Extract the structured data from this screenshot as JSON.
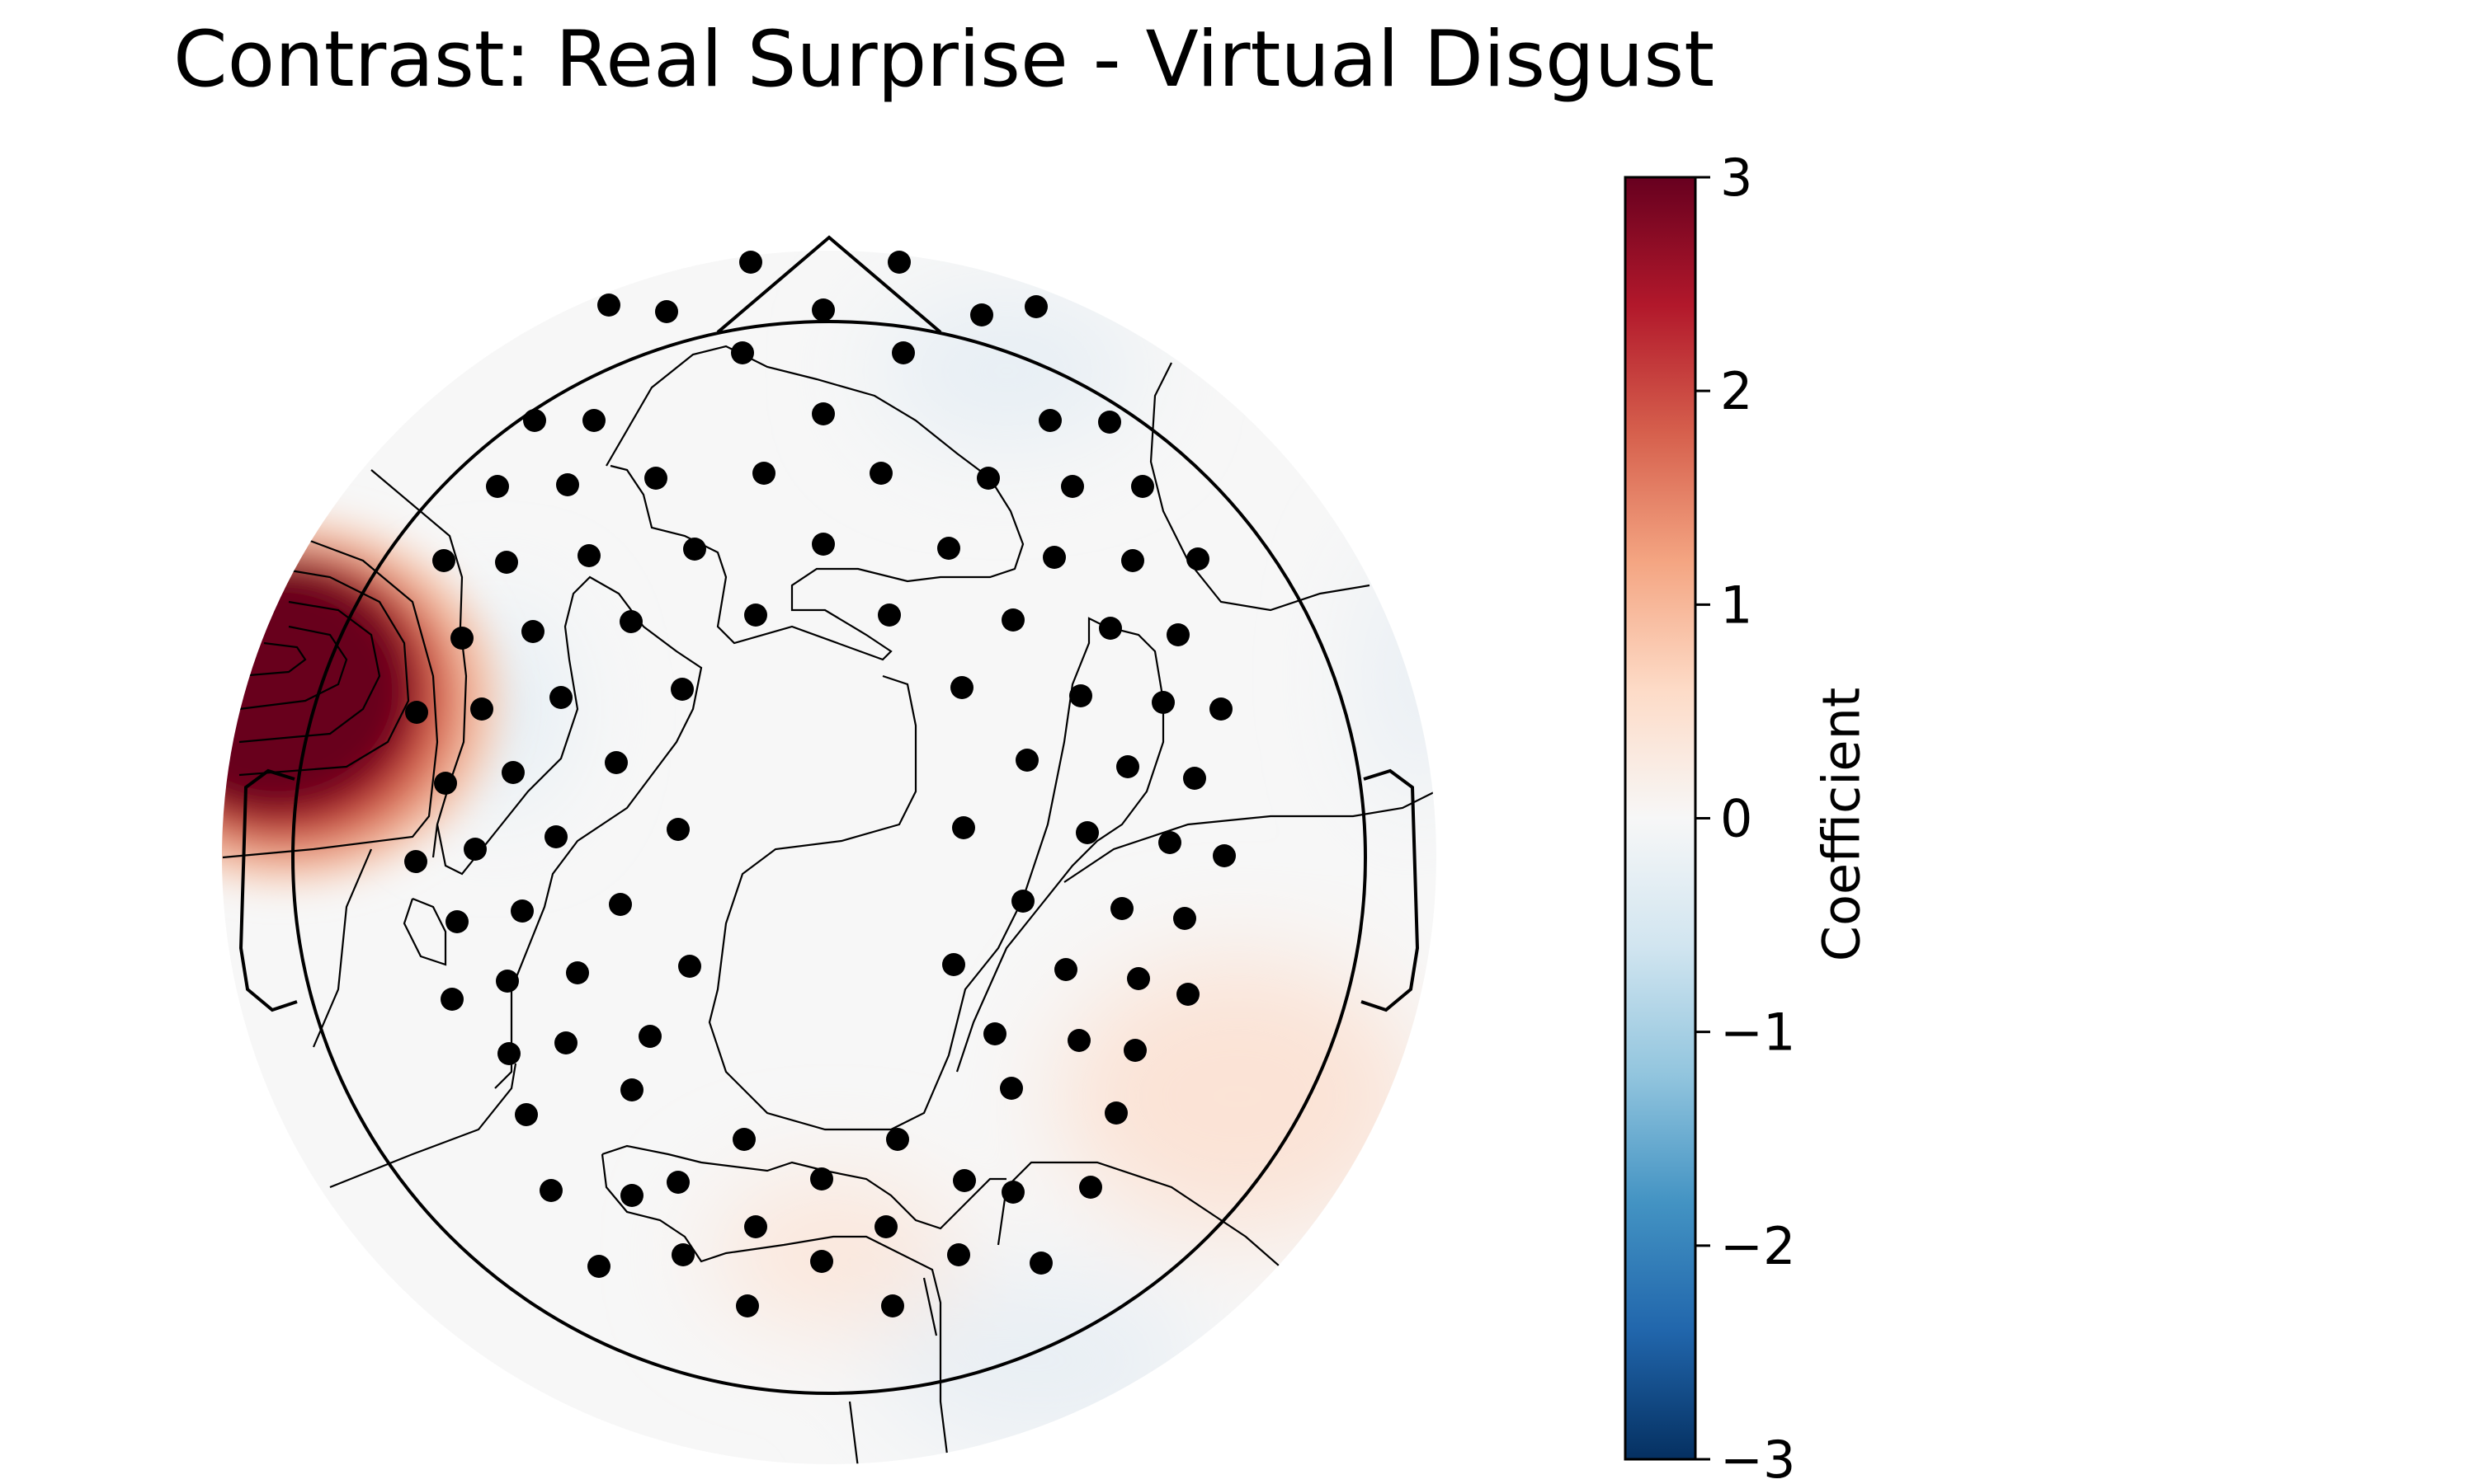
{
  "chart_data": {
    "type": "heatmap",
    "title": "Contrast: Real Surprise - Virtual Disgust",
    "colorbar": {
      "label": "Coefficient",
      "range": [
        -3,
        3
      ],
      "ticks": [
        "3",
        "2",
        "1",
        "0",
        "−1",
        "−2",
        "−3"
      ],
      "tick_values": [
        3,
        2,
        1,
        0,
        -1,
        -2,
        -3
      ],
      "colormap": "RdBu_r",
      "colors": [
        "#053061",
        "#2166ac",
        "#4393c3",
        "#92c5de",
        "#d1e5f0",
        "#f7f7f7",
        "#fddbc7",
        "#f4a582",
        "#d6604d",
        "#b2182b",
        "#67001f"
      ]
    },
    "map_regions": [
      {
        "region": "left-temporal",
        "value": 3.0
      },
      {
        "region": "right-temporal-posterior",
        "value": 0.3
      },
      {
        "region": "occipital-midline",
        "value": 0.3
      },
      {
        "region": "frontal-right",
        "value": -0.15
      },
      {
        "region": "left-frontal-temporal",
        "value": -0.3
      },
      {
        "region": "posterior-right",
        "value": -0.2
      },
      {
        "region": "central",
        "value": 0.05
      }
    ],
    "electrodes_shown": true,
    "contours_shown": true
  }
}
